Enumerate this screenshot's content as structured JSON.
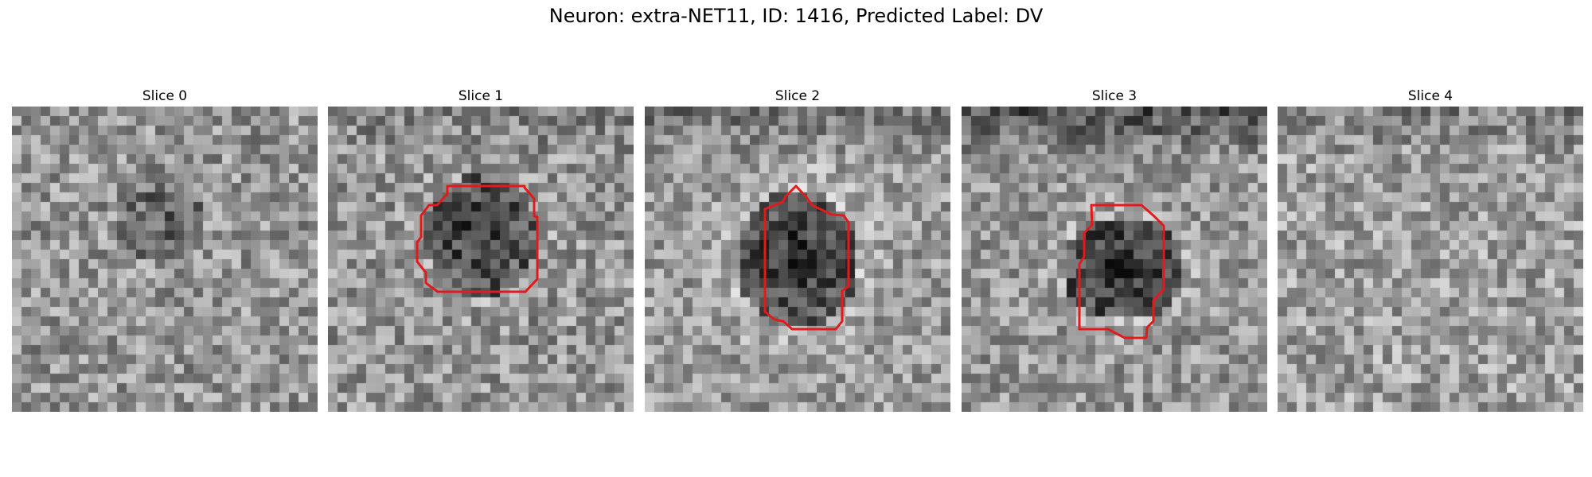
{
  "figure": {
    "title": "Neuron: extra-NET11, ID: 1416, Predicted Label: DV"
  },
  "panels": [
    {
      "title": "Slice 0",
      "has_contour": false
    },
    {
      "title": "Slice 1",
      "has_contour": true
    },
    {
      "title": "Slice 2",
      "has_contour": true
    },
    {
      "title": "Slice 3",
      "has_contour": true
    },
    {
      "title": "Slice 4",
      "has_contour": false
    }
  ],
  "colors": {
    "contour": "#e31a1c"
  }
}
